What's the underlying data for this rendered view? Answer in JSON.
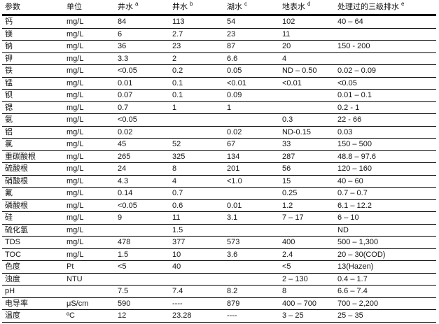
{
  "colors": {
    "background": "#ffffff",
    "text": "#141414",
    "rule": "#000000"
  },
  "table": {
    "columns": [
      {
        "label": "参数",
        "sup": ""
      },
      {
        "label": "单位",
        "sup": ""
      },
      {
        "label": "井水",
        "sup": "a"
      },
      {
        "label": "井水",
        "sup": "b"
      },
      {
        "label": "湖水",
        "sup": "c"
      },
      {
        "label": "地表水",
        "sup": "d"
      },
      {
        "label": "处理过的三级排水",
        "sup": "e"
      }
    ],
    "rows": [
      [
        "钙",
        "mg/L",
        "84",
        "113",
        "54",
        "102",
        "40 – 64"
      ],
      [
        "镁",
        "mg/L",
        "6",
        "2.7",
        "23",
        "11",
        ""
      ],
      [
        "钠",
        "mg/L",
        "36",
        "23",
        "87",
        "20",
        "150 - 200"
      ],
      [
        "钾",
        "mg/L",
        "3.3",
        "2",
        "6.6",
        "4",
        ""
      ],
      [
        "铁",
        "mg/L",
        "<0.05",
        "0.2",
        "0.05",
        "ND – 0.50",
        "0.02 – 0.09"
      ],
      [
        "锰",
        "mg/L",
        "0.01",
        "0.1",
        "<0.01",
        "<0.01",
        "<0.05"
      ],
      [
        "钡",
        "mg/L",
        "0.07",
        "0.1",
        "0.09",
        "",
        "0.01 – 0.1"
      ],
      [
        "锶",
        "mg/L",
        "0.7",
        "1",
        "1",
        "",
        "0.2 - 1"
      ],
      [
        "氨",
        "mg/L",
        "<0.05",
        "",
        "",
        "0.3",
        "22 - 66"
      ],
      [
        "铝",
        "mg/L",
        "0.02",
        "",
        "0.02",
        "ND-0.15",
        "0.03"
      ],
      [
        "氯",
        "mg/L",
        "45",
        "52",
        "67",
        "33",
        "150 – 500"
      ],
      [
        "重碳酸根",
        "mg/L",
        "265",
        "325",
        "134",
        "287",
        "48.8 – 97.6"
      ],
      [
        "硫酸根",
        "mg/L",
        "24",
        "8",
        "201",
        "56",
        "120 – 160"
      ],
      [
        "硝酸根",
        "mg/L",
        "4.3",
        "4",
        "<1.0",
        "15",
        "40 – 60"
      ],
      [
        "氟",
        "mg/L",
        "0.14",
        "0.7",
        "",
        "0.25",
        "0.7 – 0.7"
      ],
      [
        "磷酸根",
        "mg/L",
        "<0.05",
        "0.6",
        "0.01",
        "1.2",
        "6.1 – 12.2"
      ],
      [
        "硅",
        "mg/L",
        "9",
        "11",
        "3.1",
        "7 – 17",
        "6 – 10"
      ],
      [
        "硫化氢",
        "mg/L",
        "",
        "1.5",
        "",
        "",
        "ND"
      ],
      [
        "TDS",
        "mg/L",
        "478",
        "377",
        "573",
        "400",
        "500 – 1,300"
      ],
      [
        "TOC",
        "mg/L",
        "1.5",
        "10",
        "3.6",
        "2.4",
        "20 – 30(COD)"
      ],
      [
        "色度",
        "Pt",
        "<5",
        "40",
        "",
        "<5",
        "13(Hazen)"
      ],
      [
        "浊度",
        "NTU",
        "",
        "",
        "",
        "2 – 130",
        "0.4 – 1.7"
      ],
      [
        "pH",
        "",
        "7.5",
        "7.4",
        "8.2",
        "8",
        "6.6 – 7.4"
      ],
      [
        "电导率",
        "μS/cm",
        "590",
        "----",
        "879",
        "400 – 700",
        "700 – 2,200"
      ],
      [
        "温度",
        "ºC",
        "12",
        "23.28",
        "----",
        "3 – 25",
        "25 – 35"
      ]
    ]
  }
}
